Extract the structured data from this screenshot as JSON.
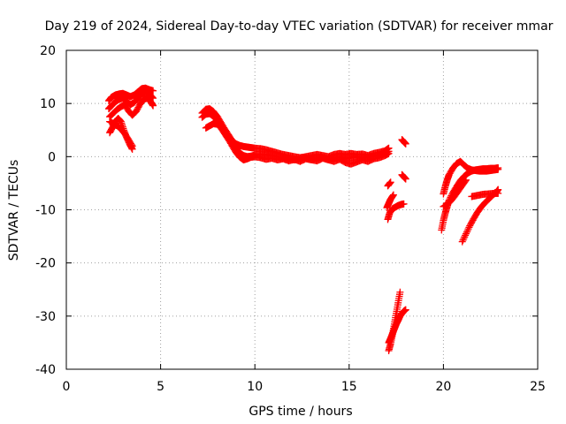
{
  "chart_data": {
    "type": "scatter",
    "title": "Day 219 of 2024, Sidereal Day-to-day VTEC variation (SDTVAR) for receiver mmar",
    "xlabel": "GPS time / hours",
    "ylabel": "SDTVAR / TECUs",
    "xlim": [
      0,
      25
    ],
    "ylim": [
      -40,
      20
    ],
    "xticks": [
      0,
      5,
      10,
      15,
      20,
      25
    ],
    "yticks": [
      -40,
      -30,
      -20,
      -10,
      0,
      10,
      20
    ],
    "grid": true,
    "marker": "+",
    "color": "#ff0000",
    "series": [
      {
        "x": [
          2.25,
          2.4,
          2.6,
          2.8,
          3.0,
          3.2,
          3.4,
          3.6,
          3.8,
          4.0,
          4.2,
          4.4,
          4.6
        ],
        "y": [
          10.5,
          11.2,
          11.6,
          11.8,
          11.9,
          11.6,
          11.3,
          11.6,
          12.2,
          12.8,
          12.9,
          12.6,
          12.4
        ]
      },
      {
        "x": [
          2.25,
          2.4,
          2.6,
          2.8,
          3.0,
          3.2,
          3.4,
          3.6,
          3.8,
          4.0,
          4.2,
          4.4,
          4.6
        ],
        "y": [
          9.0,
          9.6,
          10.3,
          10.8,
          11.0,
          10.4,
          9.8,
          10.2,
          11.0,
          11.8,
          12.2,
          11.8,
          11.0
        ]
      },
      {
        "x": [
          2.3,
          2.5,
          2.7,
          2.9,
          3.1,
          3.3,
          3.5,
          3.7,
          3.9,
          4.1,
          4.3,
          4.5,
          4.6
        ],
        "y": [
          7.5,
          8.2,
          8.9,
          9.4,
          9.8,
          8.6,
          7.8,
          8.5,
          9.8,
          10.8,
          11.0,
          10.2,
          9.6
        ]
      },
      {
        "x": [
          2.3,
          2.45,
          2.6,
          2.75,
          2.9,
          3.05,
          3.2,
          3.35,
          3.5
        ],
        "y": [
          4.5,
          5.5,
          6.6,
          7.2,
          6.6,
          5.0,
          3.6,
          2.4,
          1.4
        ]
      },
      {
        "x": [
          2.3,
          2.5,
          2.7,
          2.9,
          3.1,
          3.3,
          3.5
        ],
        "y": [
          6.6,
          6.2,
          5.8,
          5.2,
          4.3,
          3.2,
          2.0
        ]
      },
      {
        "x": [
          7.2,
          7.4,
          7.6,
          7.8,
          8.0,
          8.2,
          8.4,
          8.6,
          8.8,
          9.0,
          9.2,
          9.4,
          9.6,
          9.8,
          10.0,
          10.3,
          10.6,
          10.9,
          11.2,
          11.5,
          11.8,
          12.1,
          12.4,
          12.7,
          13.0,
          13.3,
          13.6,
          13.9,
          14.2,
          14.5,
          14.8,
          15.1,
          15.4,
          15.7,
          16.0,
          16.3,
          16.6,
          16.9,
          17.1
        ],
        "y": [
          8.2,
          8.9,
          9.0,
          8.5,
          7.6,
          6.4,
          5.2,
          4.1,
          3.0,
          2.4,
          2.1,
          1.9,
          1.8,
          1.7,
          1.6,
          1.5,
          1.3,
          1.0,
          0.7,
          0.4,
          0.2,
          0.0,
          -0.2,
          0.0,
          0.2,
          0.4,
          0.2,
          0.0,
          0.4,
          0.6,
          0.4,
          0.6,
          0.4,
          0.5,
          0.2,
          0.6,
          0.8,
          1.1,
          1.6
        ]
      },
      {
        "x": [
          7.2,
          7.4,
          7.6,
          7.8,
          8.0,
          8.2,
          8.4,
          8.6,
          8.8,
          9.0,
          9.2,
          9.4,
          9.6,
          9.8,
          10.0,
          10.3,
          10.6,
          10.9,
          11.2,
          11.5,
          11.8,
          12.1,
          12.4,
          12.7,
          13.0,
          13.3,
          13.6,
          13.9,
          14.2,
          14.5,
          14.8,
          15.1,
          15.4,
          15.7,
          16.0,
          16.3,
          16.6,
          16.9,
          17.1
        ],
        "y": [
          7.4,
          8.0,
          8.1,
          7.6,
          6.8,
          5.6,
          4.5,
          3.4,
          2.5,
          1.6,
          0.7,
          0.2,
          0.0,
          0.1,
          0.3,
          0.5,
          0.4,
          0.2,
          0.0,
          -0.3,
          -0.4,
          -0.6,
          -0.4,
          -0.2,
          -0.5,
          -0.3,
          -0.1,
          -0.6,
          -0.3,
          -0.1,
          -0.4,
          -0.2,
          0.0,
          -0.3,
          -0.1,
          0.1,
          0.3,
          0.7,
          1.0
        ]
      },
      {
        "x": [
          7.4,
          7.6,
          7.8,
          8.0,
          8.2,
          8.4,
          8.6,
          8.8,
          9.0,
          9.2,
          9.4,
          9.6,
          9.8,
          10.0,
          10.3,
          10.6,
          10.9,
          11.2,
          11.5,
          11.8,
          12.1,
          12.4,
          12.7,
          13.0,
          13.3,
          13.6,
          13.9,
          14.2,
          14.5,
          14.8,
          15.1,
          15.4,
          15.7,
          16.0,
          16.3,
          16.6,
          16.9,
          17.1
        ],
        "y": [
          5.4,
          5.8,
          6.2,
          6.1,
          5.4,
          4.3,
          3.2,
          2.0,
          0.8,
          -0.1,
          -0.6,
          -0.4,
          -0.1,
          0.0,
          -0.2,
          -0.5,
          -0.3,
          -0.6,
          -0.4,
          -0.8,
          -0.5,
          -0.9,
          -0.4,
          -0.6,
          -0.8,
          -0.3,
          -0.6,
          -0.9,
          -0.5,
          -1.1,
          -1.4,
          -1.0,
          -0.6,
          -0.9,
          -0.4,
          -0.2,
          0.2,
          0.6
        ]
      },
      {
        "x": [
          17.05,
          17.15,
          17.3,
          17.45,
          17.6,
          17.75,
          17.9
        ],
        "y": [
          -11.8,
          -10.6,
          -9.8,
          -9.5,
          -9.2,
          -9.0,
          -8.9
        ]
      },
      {
        "x": [
          17.0,
          17.1,
          17.2,
          17.35
        ],
        "y": [
          -9.6,
          -8.8,
          -8.0,
          -7.2
        ]
      },
      {
        "x": [
          17.05,
          17.2
        ],
        "y": [
          -5.5,
          -4.8
        ]
      },
      {
        "x": [
          17.8,
          17.9,
          18.0
        ],
        "y": [
          -3.4,
          -3.8,
          -4.2
        ]
      },
      {
        "x": [
          17.8,
          17.9,
          18.0
        ],
        "y": [
          3.2,
          2.8,
          2.4
        ]
      },
      {
        "x": [
          17.1,
          17.2,
          17.3,
          17.4,
          17.5,
          17.6,
          17.7
        ],
        "y": [
          -36.5,
          -35.2,
          -33.5,
          -31.5,
          -29.5,
          -27.5,
          -25.5
        ]
      },
      {
        "x": [
          17.1,
          17.2,
          17.3,
          17.4,
          17.5,
          17.6,
          17.7,
          17.8,
          17.9,
          18.0
        ],
        "y": [
          -35.0,
          -34.2,
          -33.3,
          -32.4,
          -31.5,
          -30.8,
          -30.0,
          -29.5,
          -29.1,
          -28.8
        ]
      },
      {
        "x": [
          19.9,
          20.0,
          20.1,
          20.2,
          20.3,
          20.5,
          20.7,
          20.9,
          21.1,
          21.3,
          21.5,
          21.7,
          21.9,
          22.1,
          22.3,
          22.5,
          22.7,
          22.9
        ],
        "y": [
          -13.8,
          -12.0,
          -10.6,
          -9.4,
          -8.2,
          -6.8,
          -5.6,
          -4.5,
          -3.7,
          -3.1,
          -2.7,
          -2.5,
          -2.4,
          -2.3,
          -2.3,
          -2.2,
          -2.2,
          -2.1
        ]
      },
      {
        "x": [
          20.0,
          20.1,
          20.2,
          20.3,
          20.5,
          20.7,
          20.9,
          21.1,
          21.3,
          21.5,
          21.7,
          21.9,
          22.1,
          22.3,
          22.5,
          22.7,
          22.9
        ],
        "y": [
          -7.0,
          -5.6,
          -4.4,
          -3.4,
          -2.2,
          -1.3,
          -0.9,
          -1.6,
          -2.2,
          -2.5,
          -2.6,
          -2.7,
          -2.7,
          -2.7,
          -2.6,
          -2.5,
          -2.4
        ]
      },
      {
        "x": [
          20.0,
          20.2,
          20.4,
          20.6,
          20.8,
          21.0,
          21.2
        ],
        "y": [
          -9.4,
          -9.0,
          -8.3,
          -7.4,
          -6.4,
          -5.4,
          -4.4
        ]
      },
      {
        "x": [
          21.0,
          21.2,
          21.4,
          21.6,
          21.8,
          22.0,
          22.2,
          22.4,
          22.6,
          22.8,
          22.9
        ],
        "y": [
          -16.0,
          -14.5,
          -13.0,
          -11.7,
          -10.5,
          -9.5,
          -8.7,
          -8.0,
          -7.3,
          -6.7,
          -6.2
        ]
      },
      {
        "x": [
          21.5,
          21.8,
          22.1,
          22.4,
          22.7,
          22.9
        ],
        "y": [
          -7.5,
          -7.3,
          -7.1,
          -7.0,
          -6.9,
          -6.9
        ]
      }
    ]
  }
}
